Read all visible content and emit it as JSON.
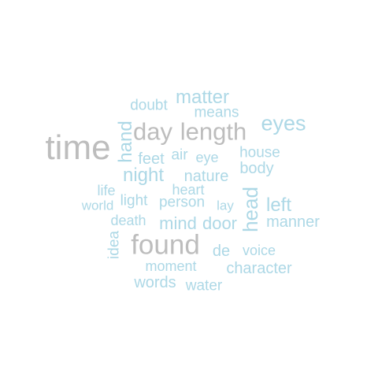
{
  "colors": {
    "gray": "#bdbdbd",
    "blue": "#add8e6"
  },
  "words": {
    "time": "time",
    "found": "found",
    "length": "length",
    "day": "day",
    "eyes": "eyes",
    "night": "night",
    "matter": "matter",
    "head": "head",
    "hand": "hand",
    "left": "left",
    "mind": "mind",
    "door": "door",
    "manner": "manner",
    "body": "body",
    "character": "character",
    "feet": "feet",
    "nature": "nature",
    "words": "words",
    "de": "de",
    "doubt": "doubt",
    "means": "means",
    "house": "house",
    "air": "air",
    "eye": "eye",
    "heart": "heart",
    "life": "life",
    "light": "light",
    "person": "person",
    "lay": "lay",
    "world": "world",
    "death": "death",
    "idea": "idea",
    "voice": "voice",
    "moment": "moment",
    "water": "water"
  }
}
